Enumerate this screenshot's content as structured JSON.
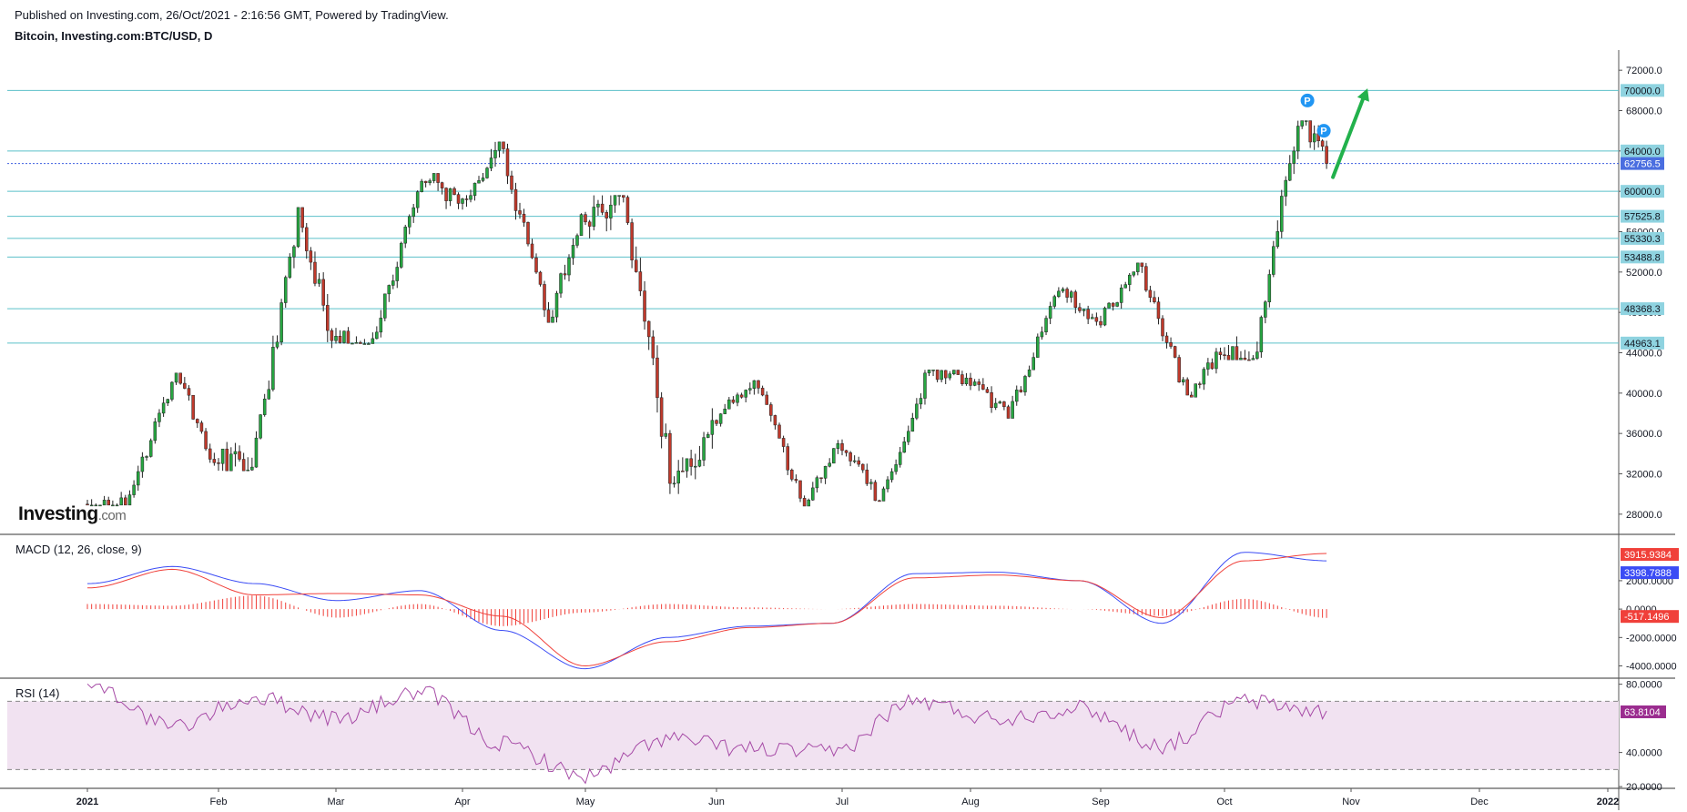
{
  "header": {
    "published": "Published on Investing.com, 26/Oct/2021 - 2:16:56 GMT, Powered by TradingView.",
    "symbol": "Bitcoin, Investing.com:BTC/USD, D"
  },
  "logo": {
    "main": "Investing",
    "suffix": ".com"
  },
  "colors": {
    "up": "#26a641",
    "down": "#c0392b",
    "level_line": "#5bc0c9",
    "current_line": "#3d5ee0",
    "macd_line": "#3b4cf5",
    "signal_line": "#f0403a",
    "histogram": "#f0403a",
    "rsi_line": "#a64aa6",
    "rsi_band": "#f1e2f1",
    "arrow": "#22b14c",
    "pivot": "#2196f3"
  },
  "chart_data": [
    {
      "type": "candlestick",
      "name": "price",
      "x_axis_labels": [
        "2021",
        "Feb",
        "Mar",
        "Apr",
        "May",
        "Jun",
        "Jul",
        "Aug",
        "Sep",
        "Oct",
        "Nov",
        "Dec",
        "2022"
      ],
      "y_ticks": [
        "28000.0",
        "32000.0",
        "36000.0",
        "40000.0",
        "44000.0",
        "48000.0",
        "52000.0",
        "56000.0",
        "60000.0",
        "64000.0",
        "68000.0",
        "72000.0"
      ],
      "ylim": [
        26000,
        74000
      ],
      "levels": [
        {
          "value": 70000,
          "label": "70000.0"
        },
        {
          "value": 64000,
          "label": "64000.0"
        },
        {
          "value": 60000,
          "label": "60000.0"
        },
        {
          "value": 57525.8,
          "label": "57525.8"
        },
        {
          "value": 55330.3,
          "label": "55330.3"
        },
        {
          "value": 53488.8,
          "label": "53488.8"
        },
        {
          "value": 48368.3,
          "label": "48368.3"
        },
        {
          "value": 44963.1,
          "label": "44963.1"
        }
      ],
      "current_price": {
        "value": 62756.5,
        "label": "62756.5"
      },
      "pivot_marker": "P",
      "monthly_ohlc": [
        {
          "month": "Jan",
          "open": 29000,
          "high": 42000,
          "low": 28900,
          "close": 33100
        },
        {
          "month": "Feb",
          "open": 33100,
          "high": 58400,
          "low": 32300,
          "close": 45200
        },
        {
          "month": "Mar",
          "open": 45200,
          "high": 61800,
          "low": 44900,
          "close": 58800
        },
        {
          "month": "Apr",
          "open": 58800,
          "high": 64900,
          "low": 47000,
          "close": 57700
        },
        {
          "month": "May",
          "open": 57700,
          "high": 59600,
          "low": 30000,
          "close": 37300
        },
        {
          "month": "Jun",
          "open": 37300,
          "high": 41300,
          "low": 28800,
          "close": 35000
        },
        {
          "month": "Jul",
          "open": 35000,
          "high": 42300,
          "low": 29300,
          "close": 41500
        },
        {
          "month": "Aug",
          "open": 41500,
          "high": 50500,
          "low": 37500,
          "close": 47100
        },
        {
          "month": "Sep",
          "open": 47100,
          "high": 52900,
          "low": 39600,
          "close": 43800
        },
        {
          "month": "Oct",
          "open": 43800,
          "high": 67000,
          "low": 43300,
          "close": 62756.5
        }
      ]
    },
    {
      "type": "line",
      "name": "MACD (12, 26, close, 9)",
      "title": "MACD (12, 26, close, 9)",
      "y_ticks": [
        "-4000.0000",
        "-2000.0000",
        "0.0000",
        "2000.0000"
      ],
      "ylim": [
        -4800,
        5200
      ],
      "tags": [
        {
          "label": "3915.9384",
          "value": 3915.9384,
          "color": "#f0403a"
        },
        {
          "label": "3398.7888",
          "value": 3398.7888,
          "color": "#3b4cf5"
        },
        {
          "label": "-517.1496",
          "value": -517.1496,
          "color": "#f0403a"
        }
      ],
      "macd_points_by_month": [
        500,
        1800,
        3000,
        1800,
        600,
        1300,
        -1500,
        -4200,
        -2000,
        -1200,
        -1000,
        2500,
        2600,
        2000,
        -1000,
        4000,
        3398.7888
      ],
      "signal_points_by_month": [
        300,
        1500,
        2800,
        1000,
        1100,
        1000,
        -500,
        -4000,
        -2300,
        -1300,
        -1000,
        2200,
        2400,
        2000,
        -600,
        3400,
        3915.9384
      ]
    },
    {
      "type": "line",
      "name": "RSI (14)",
      "title": "RSI (14)",
      "y_ticks": [
        "20.0000",
        "40.0000",
        "80.0000"
      ],
      "ylim": [
        19,
        83
      ],
      "band": [
        30,
        70
      ],
      "last": {
        "label": "63.8104",
        "value": 63.8104
      },
      "rsi_points_by_month": [
        68,
        80,
        55,
        72,
        60,
        75,
        45,
        26,
        48,
        42,
        40,
        70,
        60,
        66,
        44,
        70,
        63.8104
      ]
    }
  ]
}
